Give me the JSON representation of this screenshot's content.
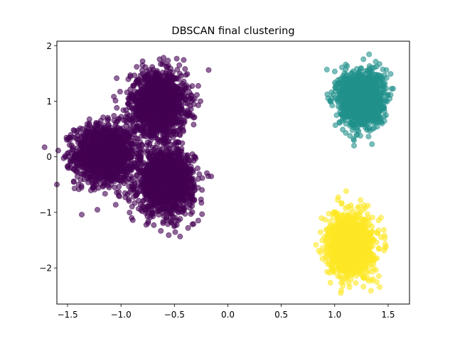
{
  "chart_data": {
    "type": "scatter",
    "title": "DBSCAN final clustering",
    "xlabel": "",
    "ylabel": "",
    "xlim": [
      -1.6,
      1.7
    ],
    "ylim": [
      -2.65,
      2.08
    ],
    "xticks": [
      -1.5,
      -1.0,
      -0.5,
      0.0,
      0.5,
      1.0,
      1.5
    ],
    "xtick_labels": [
      "−1.5",
      "−1.0",
      "−0.5",
      "0.0",
      "0.5",
      "1.0",
      "1.5"
    ],
    "yticks": [
      -2,
      -1,
      0,
      1,
      2
    ],
    "ytick_labels": [
      "−2",
      "−1",
      "0",
      "1",
      "2"
    ],
    "grid": false,
    "legend": "none",
    "series": [
      {
        "color": "#440154",
        "blobs": [
          {
            "center": [
              -1.15,
              0.05
            ],
            "spread": [
              0.14,
              0.26
            ],
            "n": 1500
          },
          {
            "center": [
              -0.65,
              0.95
            ],
            "spread": [
              0.13,
              0.28
            ],
            "n": 1500
          },
          {
            "center": [
              -0.58,
              -0.45
            ],
            "spread": [
              0.13,
              0.28
            ],
            "n": 1500
          }
        ]
      },
      {
        "color": "#21918c",
        "blobs": [
          {
            "center": [
              1.25,
              1.05
            ],
            "spread": [
              0.1,
              0.24
            ],
            "n": 1500
          }
        ]
      },
      {
        "color": "#fde725",
        "blobs": [
          {
            "center": [
              1.15,
              -1.6
            ],
            "spread": [
              0.1,
              0.26
            ],
            "n": 1500
          }
        ]
      }
    ]
  }
}
